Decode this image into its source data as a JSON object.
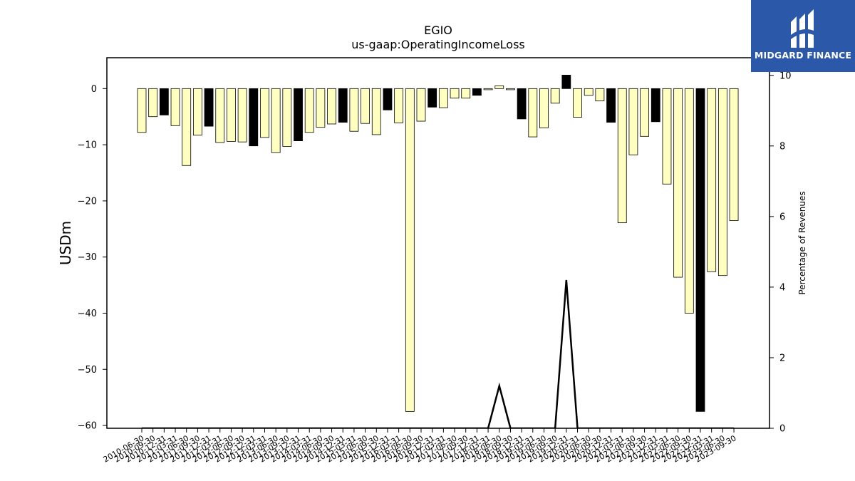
{
  "brand": {
    "logo_text": "MIDGARD FINANCE",
    "bg_color": "#2b58a8"
  },
  "chart_data": {
    "type": "bar",
    "title": "EGIO",
    "subtitle": "us-gaap:OperatingIncomeLoss",
    "ylabel": "USDm",
    "y2label": "Percentage of Revenues",
    "ylim": [
      -60.5,
      5.5
    ],
    "yticks": [
      0,
      -10,
      -20,
      -30,
      -40,
      -50,
      -60
    ],
    "y2lim": [
      0,
      10.5
    ],
    "y2ticks": [
      0,
      2,
      4,
      6,
      8,
      10
    ],
    "grid": false,
    "colors": {
      "quarter": "#ffffc0",
      "annual": "#000000",
      "edge": "#000000",
      "line": "#000000"
    },
    "categories": [
      "2010-06-30",
      "2010-09-30",
      "2010-12-31",
      "2011-03-31",
      "2011-06-30",
      "2011-09-30",
      "2011-12-31",
      "2012-03-31",
      "2012-06-30",
      "2012-09-30",
      "2012-12-31",
      "2013-03-31",
      "2013-06-30",
      "2013-09-30",
      "2013-12-31",
      "2014-03-31",
      "2014-06-30",
      "2014-09-30",
      "2014-12-31",
      "2015-03-31",
      "2015-06-30",
      "2015-09-30",
      "2015-12-31",
      "2016-03-31",
      "2016-06-30",
      "2016-09-30",
      "2016-12-31",
      "2017-03-31",
      "2017-06-30",
      "2017-09-30",
      "2017-12-31",
      "2018-03-31",
      "2018-06-30",
      "2018-09-30",
      "2018-12-31",
      "2019-03-31",
      "2019-06-30",
      "2019-09-30",
      "2019-12-31",
      "2020-03-31",
      "2020-06-30",
      "2020-09-30",
      "2020-12-31",
      "2021-03-31",
      "2021-06-30",
      "2021-09-30",
      "2021-12-31",
      "2022-03-31",
      "2022-06-30",
      "2022-09-30",
      "2022-12-31",
      "2023-03-31",
      "2023-06-30",
      "2023-09-30"
    ],
    "values": [
      -7.8,
      -5.0,
      -4.7,
      -6.6,
      -13.7,
      -8.3,
      -6.7,
      -9.6,
      -9.4,
      -9.5,
      -10.2,
      -8.7,
      -11.4,
      -10.3,
      -9.3,
      -7.8,
      -6.9,
      -6.3,
      -6.0,
      -7.6,
      -6.2,
      -8.2,
      -3.8,
      -6.1,
      -57.5,
      -5.8,
      -3.3,
      -3.4,
      -1.7,
      -1.7,
      -1.2,
      -0.2,
      0.5,
      -0.2,
      -5.4,
      -8.6,
      -7.0,
      -2.6,
      2.4,
      -5.1,
      -1.2,
      -2.2,
      -6.0,
      -23.9,
      -11.8,
      -8.5,
      -5.9,
      -17.0,
      -33.6,
      -40.0,
      -57.5,
      -32.6,
      -33.3,
      -23.5
    ],
    "annual": [
      false,
      false,
      true,
      false,
      false,
      false,
      true,
      false,
      false,
      false,
      true,
      false,
      false,
      false,
      true,
      false,
      false,
      false,
      true,
      false,
      false,
      false,
      true,
      false,
      false,
      false,
      true,
      false,
      false,
      false,
      true,
      false,
      false,
      false,
      true,
      false,
      false,
      false,
      true,
      false,
      false,
      false,
      true,
      false,
      false,
      false,
      true,
      false,
      false,
      false,
      true,
      false,
      false,
      false
    ],
    "pct_of_revenue": [
      0,
      0,
      0,
      0,
      0,
      0,
      0,
      0,
      0,
      0,
      0,
      0,
      0,
      0,
      0,
      0,
      0,
      0,
      0,
      0,
      0,
      0,
      0,
      0,
      0,
      0,
      0,
      0,
      0,
      0,
      0,
      0,
      1.2,
      0,
      0,
      0,
      0,
      0,
      4.2,
      0,
      0,
      0,
      0,
      0,
      0,
      0,
      0,
      0,
      0,
      0,
      0,
      0,
      0,
      0
    ]
  }
}
